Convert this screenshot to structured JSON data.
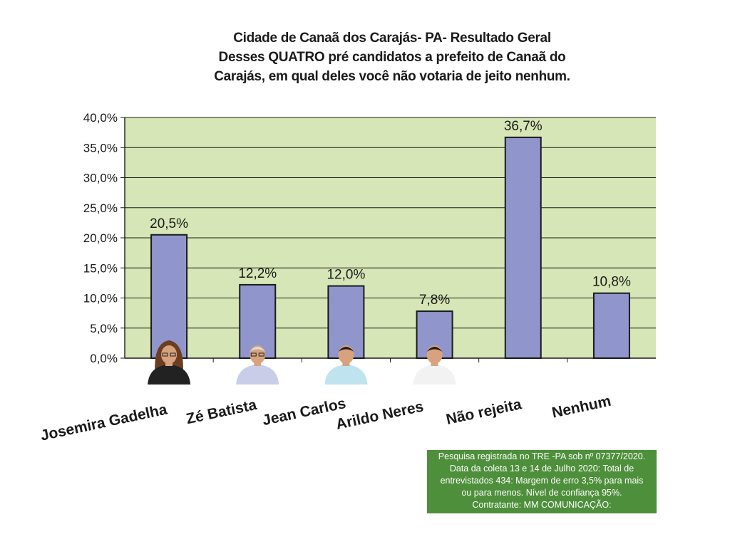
{
  "chart_data": {
    "type": "bar",
    "title_lines": [
      "Cidade de Canaã dos Carajás- PA- Resultado Geral",
      "Desses QUATRO pré candidatos a prefeito de Canaã do",
      "Carajás, em qual deles você não votaria de jeito nenhum."
    ],
    "categories": [
      "Josemira Gadelha",
      "Zé Batista",
      "Jean Carlos",
      "Arildo Neres",
      "Não rejeita",
      "Nenhum"
    ],
    "values": [
      20.5,
      12.2,
      12.0,
      7.8,
      36.7,
      10.8
    ],
    "value_labels": [
      "20,5%",
      "12,2%",
      "12,0%",
      "7,8%",
      "36,7%",
      "10,8%"
    ],
    "y_ticks": [
      "0,0%",
      "5,0%",
      "10,0%",
      "15,0%",
      "20,0%",
      "25,0%",
      "30,0%",
      "35,0%",
      "40,0%"
    ],
    "ylim": [
      0,
      40
    ],
    "grid": true,
    "legend": "none",
    "photos": [
      "female-candidate-photo",
      "male-candidate-photo",
      "male-candidate-photo",
      "male-candidate-photo"
    ],
    "colors": {
      "plot_background": "#d7e6b6",
      "bar_fill": "#9096cc",
      "bar_stroke": "#1a1a1a",
      "grid": "#1a1a1a"
    }
  },
  "note": {
    "lines": [
      "Pesquisa registrada no TRE -PA sob nº 07377/2020.",
      "Data da coleta 13 e 14 de Julho 2020: Total de",
      "entrevistados 434: Margem de erro 3,5% para mais",
      "ou para menos. Nível de confiança 95%.",
      "Contratante: MM COMUNICAÇÃO:"
    ],
    "color": "#4e8f3b"
  }
}
